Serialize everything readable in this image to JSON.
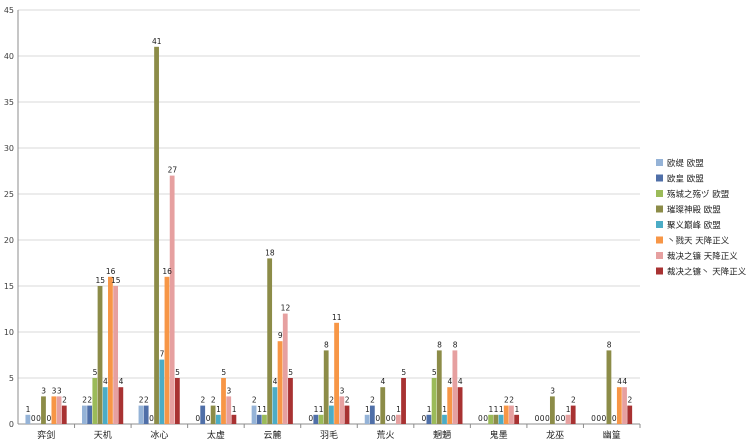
{
  "chart_data": {
    "type": "bar",
    "ylim": [
      0,
      45
    ],
    "yticks": [
      0,
      5,
      10,
      15,
      20,
      25,
      30,
      35,
      40,
      45
    ],
    "grid": true,
    "legend_position": "right",
    "categories": [
      "弈剑",
      "天机",
      "冰心",
      "太虚",
      "云麓",
      "羽毛",
      "荒火",
      "魍魉",
      "鬼墨",
      "龙巫",
      "幽篁"
    ],
    "series": [
      {
        "name": "欧缇 欧盟",
        "color": "#95b3d7",
        "values": [
          1,
          2,
          2,
          0,
          2,
          0,
          1,
          0,
          0,
          0,
          0
        ]
      },
      {
        "name": "欧皇 欧盟",
        "color": "#4f6fa8",
        "values": [
          0,
          2,
          2,
          2,
          1,
          1,
          2,
          1,
          0,
          0,
          0
        ]
      },
      {
        "name": "殇城之殇ヅ 欧盟",
        "color": "#9bbb59",
        "values": [
          0,
          5,
          0,
          0,
          1,
          1,
          0,
          5,
          1,
          0,
          0
        ]
      },
      {
        "name": "璀璨神殿 欧盟",
        "color": "#8c8c48",
        "values": [
          3,
          15,
          41,
          2,
          18,
          8,
          4,
          8,
          1,
          3,
          8
        ]
      },
      {
        "name": "聚义巅峰 欧盟",
        "color": "#4bacc6",
        "values": [
          0,
          4,
          7,
          1,
          4,
          2,
          0,
          1,
          1,
          0,
          0
        ]
      },
      {
        "name": "丶戮天 天降正义",
        "color": "#f79646",
        "values": [
          3,
          16,
          16,
          5,
          9,
          11,
          0,
          4,
          2,
          0,
          4
        ]
      },
      {
        "name": "裁决之镰 天降正义",
        "color": "#e6a0a0",
        "values": [
          3,
          15,
          27,
          3,
          12,
          3,
          1,
          8,
          2,
          1,
          4
        ]
      },
      {
        "name": "裁决之镰丶 天降正义",
        "color": "#a83232",
        "values": [
          2,
          4,
          5,
          1,
          5,
          2,
          5,
          4,
          1,
          2,
          2
        ]
      }
    ]
  }
}
